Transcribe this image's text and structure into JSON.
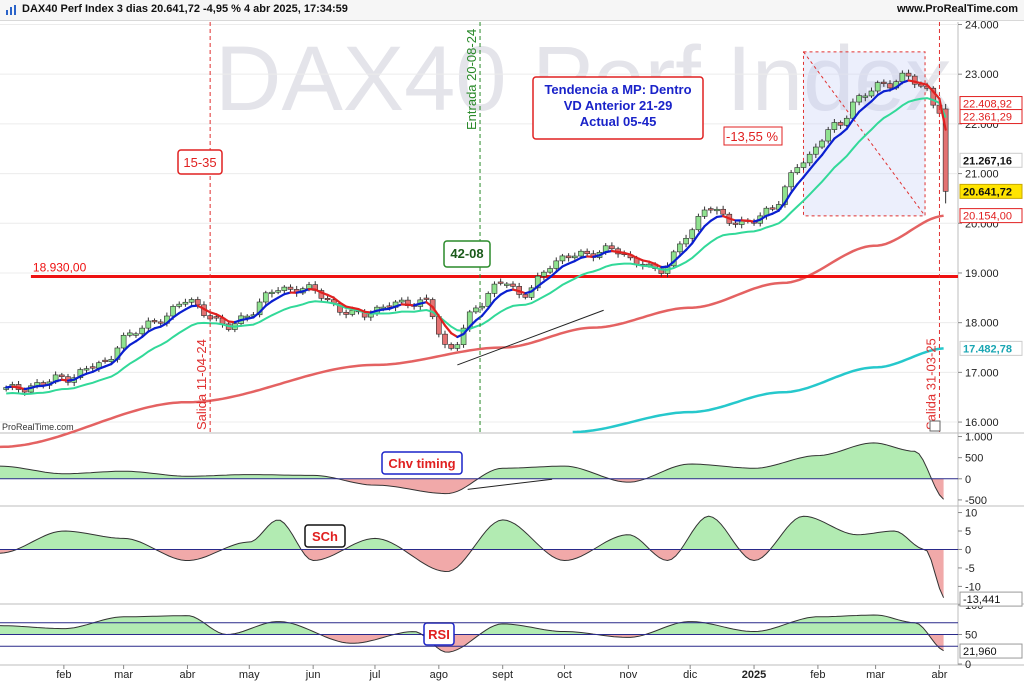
{
  "header": {
    "title": "DAX40 Perf Index 3 dias 20.641,72 -4,95 % 4 abr 2025, 17:34:59",
    "site": "www.ProRealTime.com"
  },
  "colors": {
    "up": "#8fe28f",
    "down": "#e37272",
    "ema_up": "#0a1fd0",
    "ema_down": "#e02020",
    "ema20": "#32d999",
    "ma100": "#e46262",
    "ma200": "#26c8cc",
    "support": "#ee1111",
    "entry": "#2a8a2a",
    "exit": "#e03030"
  },
  "chart_data": [
    {
      "panel": "price",
      "type": "candlestick",
      "watermark": "DAX40 Perf Index",
      "credit": "ProRealTime.com",
      "ylim": [
        15800,
        24050
      ],
      "y_ticks": [
        16000,
        17000,
        18000,
        19000,
        20000,
        21000,
        22000,
        23000,
        24000
      ],
      "y_tick_labels": [
        "16.000",
        "17.000",
        "18.000",
        "19.000",
        "20.000",
        "21.000",
        "22.000",
        "23.000",
        "24.000"
      ],
      "x_month_labels": [
        "feb",
        "mar",
        "abr",
        "may",
        "jun",
        "jul",
        "ago",
        "sept",
        "oct",
        "nov",
        "dic",
        "2025",
        "feb",
        "mar",
        "abr"
      ],
      "x_month_values": [
        "2024-02-01",
        "2024-03-01",
        "2024-04-01",
        "2024-05-01",
        "2024-06-01",
        "2024-07-01",
        "2024-08-01",
        "2024-09-01",
        "2024-10-01",
        "2024-11-01",
        "2024-12-01",
        "2025-01-01",
        "2025-02-01",
        "2025-03-01",
        "2025-04-01"
      ],
      "x_range": [
        "2024-01-01",
        "2025-04-10"
      ],
      "close_anchors": [
        {
          "x": "2024-01-04",
          "y": 16650
        },
        {
          "x": "2024-01-20",
          "y": 16750
        },
        {
          "x": "2024-02-01",
          "y": 16900
        },
        {
          "x": "2024-02-20",
          "y": 17150
        },
        {
          "x": "2024-03-01",
          "y": 17700
        },
        {
          "x": "2024-03-20",
          "y": 18100
        },
        {
          "x": "2024-04-01",
          "y": 18450
        },
        {
          "x": "2024-04-20",
          "y": 17900
        },
        {
          "x": "2024-05-01",
          "y": 18200
        },
        {
          "x": "2024-05-15",
          "y": 18700
        },
        {
          "x": "2024-05-31",
          "y": 18650
        },
        {
          "x": "2024-06-20",
          "y": 18150
        },
        {
          "x": "2024-07-10",
          "y": 18350
        },
        {
          "x": "2024-07-25",
          "y": 18450
        },
        {
          "x": "2024-08-05",
          "y": 17450
        },
        {
          "x": "2024-08-20",
          "y": 18300
        },
        {
          "x": "2024-09-01",
          "y": 18900
        },
        {
          "x": "2024-09-10",
          "y": 18500
        },
        {
          "x": "2024-09-25",
          "y": 19200
        },
        {
          "x": "2024-10-10",
          "y": 19400
        },
        {
          "x": "2024-10-25",
          "y": 19450
        },
        {
          "x": "2024-11-05",
          "y": 19250
        },
        {
          "x": "2024-11-15",
          "y": 19000
        },
        {
          "x": "2024-12-01",
          "y": 19800
        },
        {
          "x": "2024-12-10",
          "y": 20350
        },
        {
          "x": "2024-12-25",
          "y": 19950
        },
        {
          "x": "2025-01-10",
          "y": 20300
        },
        {
          "x": "2025-01-25",
          "y": 21300
        },
        {
          "x": "2025-02-10",
          "y": 21950
        },
        {
          "x": "2025-02-20",
          "y": 22500
        },
        {
          "x": "2025-03-05",
          "y": 22800
        },
        {
          "x": "2025-03-15",
          "y": 22950
        },
        {
          "x": "2025-03-25",
          "y": 22700
        },
        {
          "x": "2025-04-01",
          "y": 22300
        },
        {
          "x": "2025-04-04",
          "y": 20642
        }
      ],
      "last_candle": {
        "x": "2025-04-04",
        "open": 22300,
        "high": 22400,
        "low": 20400,
        "close": 20642
      },
      "ma100_points": [
        {
          "x": "2024-01-01",
          "y": 15500
        },
        {
          "x": "2024-04-01",
          "y": 16400
        },
        {
          "x": "2024-07-01",
          "y": 17150
        },
        {
          "x": "2024-09-01",
          "y": 17500
        },
        {
          "x": "2024-10-15",
          "y": 17900
        },
        {
          "x": "2024-12-01",
          "y": 18300
        },
        {
          "x": "2025-01-15",
          "y": 18800
        },
        {
          "x": "2025-03-01",
          "y": 19550
        },
        {
          "x": "2025-04-04",
          "y": 20154
        }
      ],
      "ma200_points": [
        {
          "x": "2024-10-05",
          "y": 15800
        },
        {
          "x": "2024-12-01",
          "y": 16200
        },
        {
          "x": "2025-01-15",
          "y": 16600
        },
        {
          "x": "2025-03-01",
          "y": 17100
        },
        {
          "x": "2025-04-04",
          "y": 17483
        }
      ],
      "support_level": {
        "value": 18930,
        "label": "18.930,00",
        "x_start": "2024-01-16",
        "x_end": "2025-04-10"
      },
      "price_labels": [
        {
          "value": 22408.92,
          "label": "22.408,92",
          "color": "#e02020",
          "style": "outline"
        },
        {
          "value": 22361.29,
          "label": "22.361,29",
          "color": "#e02020",
          "style": "outline"
        },
        {
          "value": 21267.16,
          "label": "21.267,16",
          "color": "#111111",
          "style": "bold"
        },
        {
          "value": 20641.72,
          "label": "20.641,72",
          "color": "#111111",
          "style": "yellow"
        },
        {
          "value": 20154.0,
          "label": "20.154,00",
          "color": "#e02020",
          "style": "outline"
        },
        {
          "value": 17482.78,
          "label": "17.482,78",
          "color": "#1aa6b3",
          "style": "bold"
        }
      ],
      "vertical_lines": [
        {
          "x": "2024-04-12",
          "label": "Salida 11-04-24",
          "color": "exit"
        },
        {
          "x": "2024-08-21",
          "label": "Entrada 20-08-24",
          "color": "entry"
        },
        {
          "x": "2025-04-01",
          "label": "Salida 31-03-25",
          "color": "exit"
        }
      ],
      "annotations": {
        "tendencia": [
          "Tendencia a MP: Dentro",
          "VD Anterior 21-29",
          "Actual 05-45"
        ],
        "box_1535": "15-35",
        "box_4208": "42-08",
        "drawdown": "-13,55 %"
      },
      "drawdown_box": {
        "x0": "2025-01-25",
        "x1": "2025-03-25",
        "y0": 20150,
        "y1": 23450
      }
    },
    {
      "panel": "oscillator",
      "type": "area",
      "title": "Chv timing",
      "ylim": [
        -620,
        1060
      ],
      "y_ticks": [
        1000,
        500,
        0,
        -500
      ],
      "y_tick_labels": [
        "1.000",
        "500",
        "0",
        "-500"
      ],
      "points": [
        {
          "x": "2024-01-01",
          "y": 300
        },
        {
          "x": "2024-02-01",
          "y": 120
        },
        {
          "x": "2024-03-01",
          "y": 180
        },
        {
          "x": "2024-04-01",
          "y": 60
        },
        {
          "x": "2024-05-01",
          "y": 100
        },
        {
          "x": "2024-06-01",
          "y": 80
        },
        {
          "x": "2024-07-01",
          "y": -150
        },
        {
          "x": "2024-08-05",
          "y": -350
        },
        {
          "x": "2024-09-01",
          "y": 250
        },
        {
          "x": "2024-10-01",
          "y": 300
        },
        {
          "x": "2024-11-01",
          "y": -80
        },
        {
          "x": "2024-12-01",
          "y": 350
        },
        {
          "x": "2025-01-01",
          "y": 250
        },
        {
          "x": "2025-02-01",
          "y": 550
        },
        {
          "x": "2025-02-28",
          "y": 850
        },
        {
          "x": "2025-03-20",
          "y": 650
        },
        {
          "x": "2025-04-04",
          "y": -500
        }
      ]
    },
    {
      "panel": "oscillator",
      "type": "area",
      "title": "SCh",
      "ylim": [
        -14.5,
        11.5
      ],
      "y_ticks": [
        10,
        5,
        0,
        -5,
        -10
      ],
      "y_tick_labels": [
        "10",
        "5",
        "0",
        "-5",
        "-10"
      ],
      "last_value": {
        "value": -13.441,
        "label": "-13,441"
      },
      "points": [
        {
          "x": "2024-01-01",
          "y": -1
        },
        {
          "x": "2024-02-01",
          "y": 5
        },
        {
          "x": "2024-03-01",
          "y": 3
        },
        {
          "x": "2024-04-01",
          "y": -3
        },
        {
          "x": "2024-05-01",
          "y": 2
        },
        {
          "x": "2024-05-15",
          "y": 8
        },
        {
          "x": "2024-06-01",
          "y": -3
        },
        {
          "x": "2024-07-01",
          "y": 3
        },
        {
          "x": "2024-08-05",
          "y": -6
        },
        {
          "x": "2024-09-01",
          "y": 8
        },
        {
          "x": "2024-10-01",
          "y": -3
        },
        {
          "x": "2024-11-01",
          "y": 4
        },
        {
          "x": "2024-11-20",
          "y": -3
        },
        {
          "x": "2024-12-10",
          "y": 9
        },
        {
          "x": "2025-01-01",
          "y": -3
        },
        {
          "x": "2025-01-25",
          "y": 9
        },
        {
          "x": "2025-02-20",
          "y": 4
        },
        {
          "x": "2025-03-10",
          "y": 5
        },
        {
          "x": "2025-03-25",
          "y": 0
        },
        {
          "x": "2025-04-04",
          "y": -13.441
        }
      ]
    },
    {
      "panel": "oscillator",
      "type": "area",
      "title": "RSI",
      "ylim": [
        0,
        100
      ],
      "y_ticks": [
        100,
        50,
        0
      ],
      "y_tick_labels": [
        "100",
        "50",
        "0"
      ],
      "levels": [
        70,
        30
      ],
      "last_value": {
        "value": 21.96,
        "label": "21,960"
      },
      "points": [
        {
          "x": "2024-01-01",
          "y": 65
        },
        {
          "x": "2024-02-01",
          "y": 60
        },
        {
          "x": "2024-03-01",
          "y": 80
        },
        {
          "x": "2024-04-01",
          "y": 82
        },
        {
          "x": "2024-04-20",
          "y": 50
        },
        {
          "x": "2024-05-15",
          "y": 72
        },
        {
          "x": "2024-06-20",
          "y": 35
        },
        {
          "x": "2024-07-20",
          "y": 55
        },
        {
          "x": "2024-08-05",
          "y": 20
        },
        {
          "x": "2024-09-01",
          "y": 68
        },
        {
          "x": "2024-10-01",
          "y": 55
        },
        {
          "x": "2024-11-01",
          "y": 45
        },
        {
          "x": "2024-12-01",
          "y": 72
        },
        {
          "x": "2025-01-01",
          "y": 55
        },
        {
          "x": "2025-02-01",
          "y": 80
        },
        {
          "x": "2025-03-01",
          "y": 83
        },
        {
          "x": "2025-03-20",
          "y": 70
        },
        {
          "x": "2025-04-04",
          "y": 21.96
        }
      ]
    }
  ]
}
